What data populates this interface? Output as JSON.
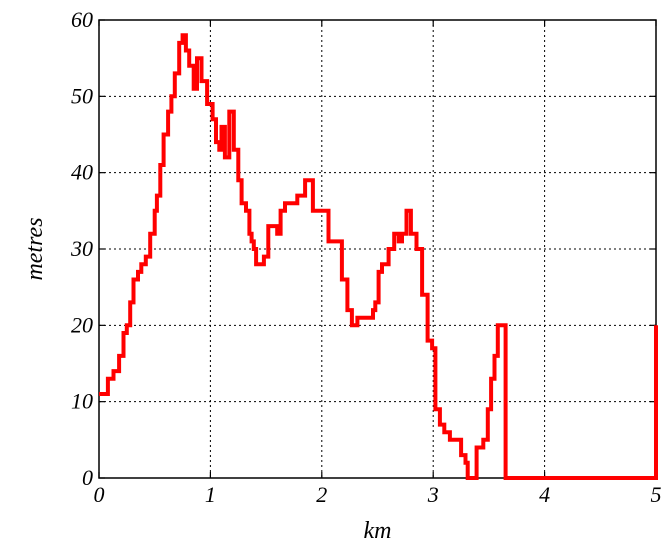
{
  "chart_data": {
    "type": "line",
    "title": "",
    "xlabel": "km",
    "ylabel": "metres",
    "xlim": [
      0,
      5
    ],
    "ylim": [
      0,
      60
    ],
    "xticks": [
      0,
      1,
      2,
      3,
      4,
      5
    ],
    "yticks": [
      0,
      10,
      20,
      30,
      40,
      50,
      60
    ],
    "xtick_labels": [
      "0",
      "1",
      "2",
      "3",
      "4",
      "5"
    ],
    "ytick_labels": [
      "0",
      "10",
      "20",
      "30",
      "40",
      "50",
      "60"
    ],
    "grid": true,
    "line_color": "#ff0000",
    "series": [
      {
        "step": true,
        "x": [
          0,
          0.08,
          0.13,
          0.18,
          0.22,
          0.25,
          0.28,
          0.31,
          0.35,
          0.38,
          0.42,
          0.46,
          0.5,
          0.52,
          0.55,
          0.58,
          0.62,
          0.65,
          0.68,
          0.72,
          0.75,
          0.78,
          0.81,
          0.85,
          0.88,
          0.92,
          0.97,
          1.02,
          1.05,
          1.08,
          1.1,
          1.13,
          1.17,
          1.21,
          1.25,
          1.28,
          1.32,
          1.35,
          1.37,
          1.39,
          1.41,
          1.45,
          1.48,
          1.52,
          1.57,
          1.6,
          1.63,
          1.67,
          1.72,
          1.78,
          1.85,
          1.92,
          2.06,
          2.18,
          2.23,
          2.27,
          2.32,
          2.37,
          2.43,
          2.46,
          2.48,
          2.51,
          2.54,
          2.6,
          2.65,
          2.69,
          2.72,
          2.76,
          2.8,
          2.85,
          2.9,
          2.95,
          2.99,
          3.02,
          3.06,
          3.1,
          3.15,
          3.2,
          3.25,
          3.29,
          3.31,
          3.35,
          3.39,
          3.45,
          3.49,
          3.52,
          3.55,
          3.58,
          3.61,
          3.65,
          3.68,
          3.72,
          3.75,
          3.8,
          3.88,
          3.95,
          4.0,
          4.04,
          4.05,
          4.73,
          4.77,
          4.81,
          4.85,
          4.88,
          4.92,
          4.94,
          4.97,
          5.0
        ],
        "y": [
          11,
          13,
          14,
          16,
          19,
          20,
          23,
          26,
          27,
          28,
          29,
          32,
          35,
          37,
          41,
          45,
          48,
          50,
          53,
          57,
          58,
          56,
          54,
          51,
          55,
          52,
          49,
          47,
          44,
          43,
          46,
          42,
          48,
          43,
          39,
          36,
          35,
          32,
          31,
          30,
          28,
          28,
          29,
          33,
          33,
          32,
          35,
          36,
          36,
          37,
          39,
          35,
          31,
          26,
          22,
          20,
          21,
          21,
          21,
          22,
          23,
          27,
          28,
          30,
          32,
          31,
          32,
          35,
          32,
          30,
          24,
          18,
          17,
          9,
          7,
          6,
          5,
          5,
          3,
          2,
          0,
          0,
          4,
          5,
          9,
          13,
          16,
          20,
          20,
          0,
          0,
          0,
          0,
          0,
          0,
          0,
          0,
          0,
          0,
          0,
          0,
          0,
          0,
          0,
          0,
          0,
          0,
          20
        ]
      }
    ]
  }
}
